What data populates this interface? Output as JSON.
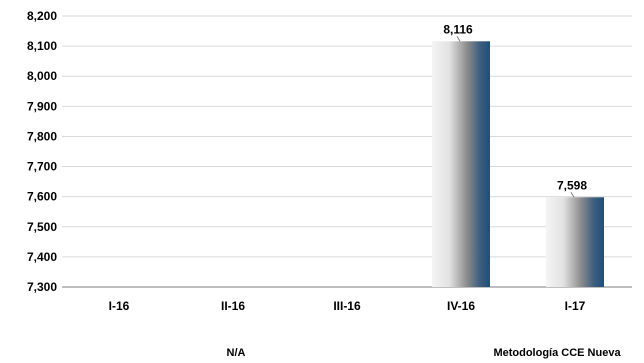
{
  "chart_data": {
    "type": "bar",
    "categories": [
      "I-16",
      "II-16",
      "III-16",
      "IV-16",
      "I-17"
    ],
    "values": [
      null,
      null,
      null,
      8116,
      7598
    ],
    "data_labels": [
      "",
      "",
      "",
      "8,116",
      "7,598"
    ],
    "ylim": [
      7300,
      8200
    ],
    "y_ticks": [
      "7,300",
      "7,400",
      "7,500",
      "7,600",
      "7,700",
      "7,800",
      "7,900",
      "8,000",
      "8,100",
      "8,200"
    ],
    "grid": true,
    "group_labels": [
      "N/A",
      "Metodología CCE Nueva"
    ],
    "bar_colors": {
      "light": "#f2f2f2",
      "mid": "#9a9a9a",
      "dark": "#1f4e79"
    }
  }
}
